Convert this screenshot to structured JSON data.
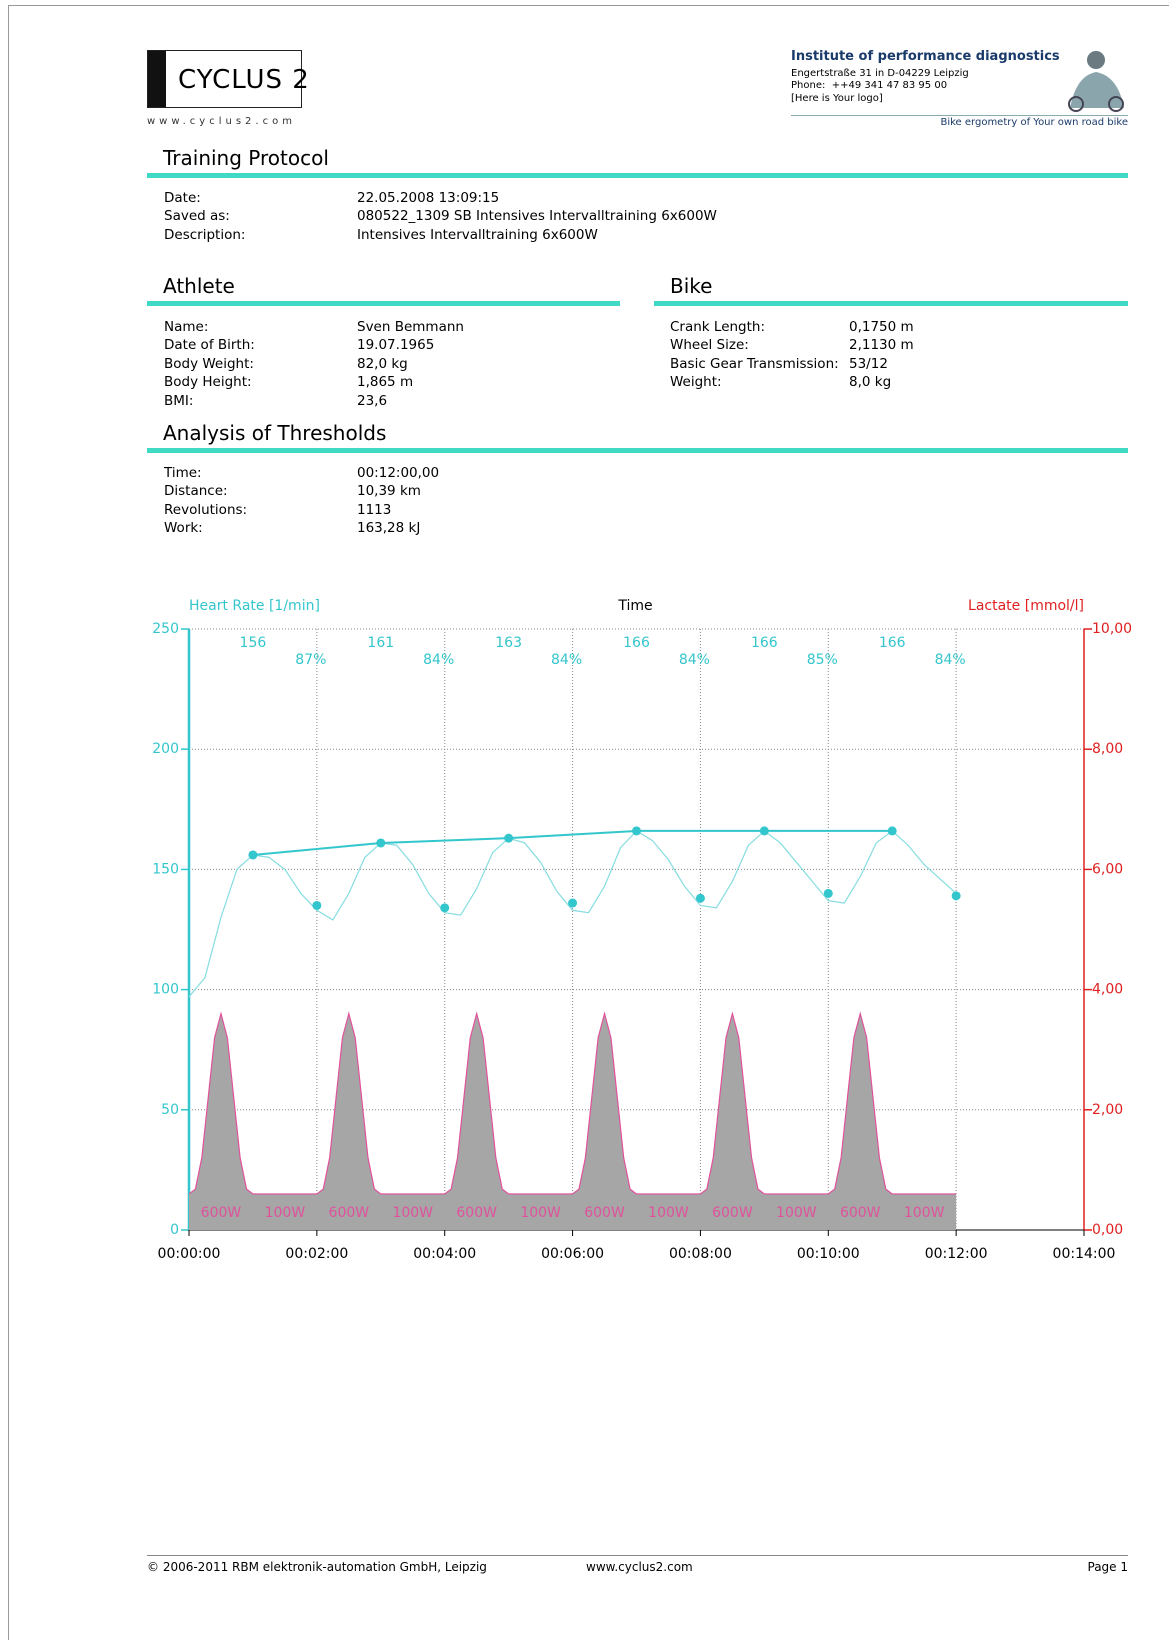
{
  "header": {
    "logo": "CYCLUS 2",
    "website": "www.cyclus2.com",
    "institute": "Institute of performance diagnostics",
    "address": "Engertstraße 31 in D-04229 Leipzig",
    "phone": "Phone:  ++49 341 47 83 95 00",
    "logo_note": "[Here is Your logo]",
    "tagline": "Bike ergometry of Your own road bike"
  },
  "training_protocol": {
    "title": "Training Protocol",
    "rows": [
      [
        "Date:",
        "22.05.2008 13:09:15"
      ],
      [
        "Saved as:",
        "080522_1309 SB Intensives Intervalltraining 6x600W"
      ],
      [
        "Description:",
        "Intensives Intervalltraining 6x600W"
      ]
    ]
  },
  "athlete": {
    "title": "Athlete",
    "rows": [
      [
        "Name:",
        "Sven Bemmann"
      ],
      [
        "Date of Birth:",
        "19.07.1965"
      ],
      [
        "Body Weight:",
        "82,0 kg"
      ],
      [
        "Body Height:",
        "1,865 m"
      ],
      [
        "BMI:",
        "23,6"
      ]
    ]
  },
  "bike": {
    "title": "Bike",
    "rows": [
      [
        "Crank Length:",
        "0,1750 m"
      ],
      [
        "Wheel Size:",
        "2,1130 m"
      ],
      [
        "Basic Gear Transmission:",
        "53/12"
      ],
      [
        "Weight:",
        "8,0 kg"
      ]
    ]
  },
  "thresholds": {
    "title": "Analysis of Thresholds",
    "rows": [
      [
        "Time:",
        "00:12:00,00"
      ],
      [
        "Distance:",
        "10,39 km"
      ],
      [
        "Revolutions:",
        "1113"
      ],
      [
        "Work:",
        "163,28 kJ"
      ]
    ]
  },
  "chart_data": {
    "type": "line",
    "title": "Time",
    "y_label": "Heart Rate [1/min]",
    "y2_label": "Lactate [mmol/l]",
    "xlim": [
      0,
      14
    ],
    "xticks": [
      {
        "value": 0,
        "label": "00:00:00"
      },
      {
        "value": 2,
        "label": "00:02:00"
      },
      {
        "value": 4,
        "label": "00:04:00"
      },
      {
        "value": 6,
        "label": "00:06:00"
      },
      {
        "value": 8,
        "label": "00:08:00"
      },
      {
        "value": 10,
        "label": "00:10:00"
      },
      {
        "value": 12,
        "label": "00:12:00"
      },
      {
        "value": 14,
        "label": "00:14:00"
      }
    ],
    "ylim": [
      0,
      250
    ],
    "yticks": [
      0,
      50,
      100,
      150,
      200,
      250
    ],
    "y2lim": [
      0,
      10
    ],
    "y2ticks": [
      {
        "value": 0,
        "label": "0,00"
      },
      {
        "value": 2,
        "label": "2,00"
      },
      {
        "value": 4,
        "label": "4,00"
      },
      {
        "value": 6,
        "label": "6,00"
      },
      {
        "value": 8,
        "label": "8,00"
      },
      {
        "value": 10,
        "label": "10,00"
      }
    ],
    "grid": true,
    "y_color": "#33c6cc",
    "y2_color": "#e02020",
    "series": [
      {
        "color": "#86dde0",
        "x": [
          0,
          0.25,
          0.5,
          0.75,
          1,
          1.25,
          1.5,
          1.75,
          2,
          2.25,
          2.5,
          2.75,
          3,
          3.25,
          3.5,
          3.75,
          4,
          4.25,
          4.5,
          4.75,
          5,
          5.25,
          5.5,
          5.75,
          6,
          6.25,
          6.5,
          6.75,
          7,
          7.25,
          7.5,
          7.75,
          8,
          8.25,
          8.5,
          8.75,
          9,
          9.25,
          9.5,
          9.75,
          10,
          10.25,
          10.5,
          10.75,
          11,
          11.25,
          11.5,
          11.75,
          12
        ],
        "values": [
          97,
          105,
          130,
          150,
          156,
          155,
          150,
          140,
          133,
          129,
          140,
          155,
          161,
          160,
          152,
          140,
          132,
          131,
          142,
          157,
          163,
          161,
          153,
          141,
          133,
          132,
          143,
          159,
          166,
          162,
          154,
          143,
          135,
          134,
          145,
          160,
          166,
          161,
          153,
          145,
          137,
          136,
          147,
          161,
          166,
          160,
          152,
          146,
          140
        ]
      },
      {
        "color": "#33c6cc",
        "markers": true,
        "line": true,
        "x": [
          1,
          3,
          5,
          7,
          9,
          11
        ],
        "values": [
          156,
          161,
          163,
          166,
          166,
          166
        ]
      },
      {
        "color": "#33c6cc",
        "markers": true,
        "line": false,
        "x": [
          2,
          4,
          6,
          8,
          10,
          12
        ],
        "values": [
          135,
          134,
          136,
          138,
          140,
          139
        ],
        "recovery_labels": [
          "87%",
          "84%",
          "84%",
          "84%",
          "85%",
          "84%"
        ]
      },
      {
        "color": "#a6a6a6",
        "edge_color": "#e0529c",
        "area": true,
        "x": [
          0,
          0.1,
          0.2,
          0.3,
          0.4,
          0.5,
          0.6,
          0.7,
          0.8,
          0.9,
          1,
          1.5,
          2,
          2.1,
          2.2,
          2.3,
          2.4,
          2.5,
          2.6,
          2.7,
          2.8,
          2.9,
          3,
          3.5,
          4,
          4.1,
          4.2,
          4.3,
          4.4,
          4.5,
          4.6,
          4.7,
          4.8,
          4.9,
          5,
          5.5,
          6,
          6.1,
          6.2,
          6.3,
          6.4,
          6.5,
          6.6,
          6.7,
          6.8,
          6.9,
          7,
          7.5,
          8,
          8.1,
          8.2,
          8.3,
          8.4,
          8.5,
          8.6,
          8.7,
          8.8,
          8.9,
          9,
          9.5,
          10,
          10.1,
          10.2,
          10.3,
          10.4,
          10.5,
          10.6,
          10.7,
          10.8,
          10.9,
          11,
          11.5,
          12
        ],
        "values": [
          15,
          17,
          30,
          55,
          80,
          90,
          80,
          55,
          30,
          17,
          15,
          15,
          15,
          17,
          30,
          55,
          80,
          90,
          80,
          55,
          30,
          17,
          15,
          15,
          15,
          17,
          30,
          55,
          80,
          90,
          80,
          55,
          30,
          17,
          15,
          15,
          15,
          17,
          30,
          55,
          80,
          90,
          80,
          55,
          30,
          17,
          15,
          15,
          15,
          17,
          30,
          55,
          80,
          90,
          80,
          55,
          30,
          17,
          15,
          15,
          15,
          17,
          30,
          55,
          80,
          90,
          80,
          55,
          30,
          17,
          15,
          15,
          15
        ],
        "segment_x": [
          0.5,
          1.5,
          2.5,
          3.5,
          4.5,
          5.5,
          6.5,
          7.5,
          8.5,
          9.5,
          10.5,
          11.5
        ],
        "segment_labels": [
          "600W",
          "100W",
          "600W",
          "100W",
          "600W",
          "100W",
          "600W",
          "100W",
          "600W",
          "100W",
          "600W",
          "100W"
        ]
      }
    ]
  },
  "footer": {
    "copyright": "© 2006-2011 RBM elektronik-automation GmbH, Leipzig",
    "website": "www.cyclus2.com",
    "page": "Page 1"
  }
}
